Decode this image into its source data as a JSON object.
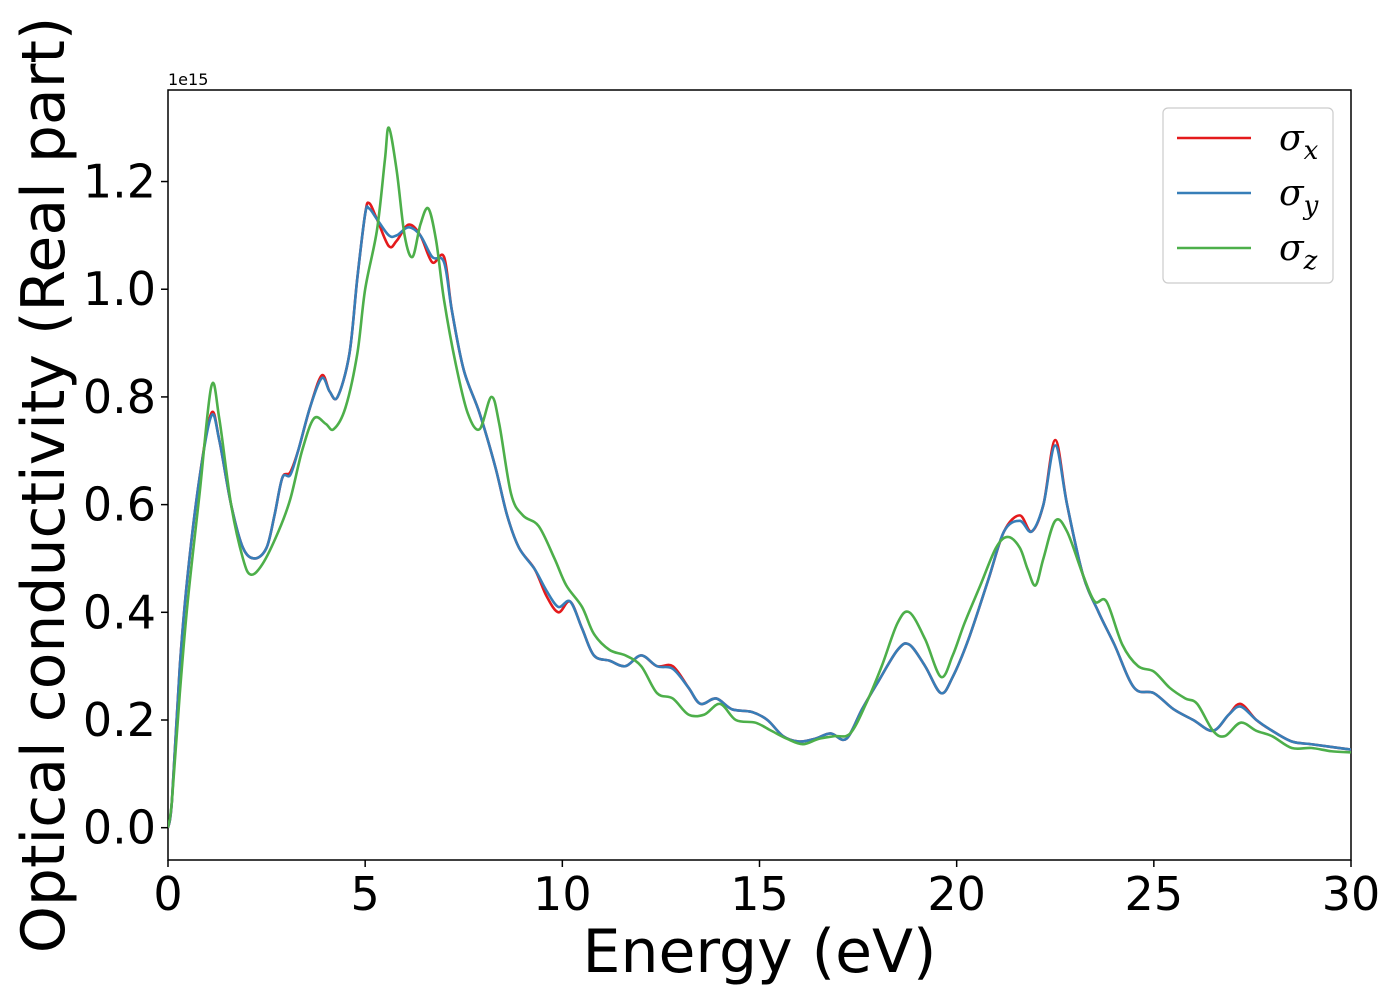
{
  "chart_data": {
    "type": "line",
    "title": "",
    "xlabel": "Energy (eV)",
    "ylabel": "Optical conductivity (Real part)",
    "y_offset_label": "1e15",
    "xlim": [
      0,
      30
    ],
    "ylim": [
      -0.06,
      1.37
    ],
    "x_ticks": [
      0,
      5,
      10,
      15,
      20,
      25,
      30
    ],
    "x_tick_labels": [
      "0",
      "5",
      "10",
      "15",
      "20",
      "25",
      "30"
    ],
    "y_ticks": [
      0.0,
      0.2,
      0.4,
      0.6,
      0.8,
      1.0,
      1.2
    ],
    "y_tick_labels": [
      "0.0",
      "0.2",
      "0.4",
      "0.6",
      "0.8",
      "1.0",
      "1.2"
    ],
    "grid": false,
    "legend_position": "top-right",
    "series": [
      {
        "name": "σx",
        "legend_symbol": "σ",
        "legend_sub": "x",
        "color": "#e41a1c",
        "points": [
          [
            0,
            0
          ],
          [
            0.1,
            0.05
          ],
          [
            0.3,
            0.3
          ],
          [
            0.5,
            0.47
          ],
          [
            0.8,
            0.65
          ],
          [
            1.1,
            0.77
          ],
          [
            1.3,
            0.72
          ],
          [
            1.6,
            0.6
          ],
          [
            1.9,
            0.52
          ],
          [
            2.2,
            0.5
          ],
          [
            2.5,
            0.52
          ],
          [
            2.7,
            0.58
          ],
          [
            2.9,
            0.65
          ],
          [
            3.1,
            0.66
          ],
          [
            3.3,
            0.7
          ],
          [
            3.6,
            0.78
          ],
          [
            3.9,
            0.84
          ],
          [
            4.1,
            0.81
          ],
          [
            4.3,
            0.8
          ],
          [
            4.6,
            0.88
          ],
          [
            4.8,
            1.02
          ],
          [
            5.0,
            1.14
          ],
          [
            5.1,
            1.16
          ],
          [
            5.3,
            1.13
          ],
          [
            5.6,
            1.08
          ],
          [
            5.8,
            1.09
          ],
          [
            6.1,
            1.12
          ],
          [
            6.4,
            1.1
          ],
          [
            6.7,
            1.05
          ],
          [
            7.0,
            1.06
          ],
          [
            7.2,
            0.96
          ],
          [
            7.5,
            0.85
          ],
          [
            7.9,
            0.77
          ],
          [
            8.3,
            0.67
          ],
          [
            8.6,
            0.58
          ],
          [
            8.9,
            0.52
          ],
          [
            9.3,
            0.48
          ],
          [
            9.6,
            0.43
          ],
          [
            9.9,
            0.4
          ],
          [
            10.2,
            0.42
          ],
          [
            10.5,
            0.37
          ],
          [
            10.8,
            0.32
          ],
          [
            11.2,
            0.31
          ],
          [
            11.6,
            0.3
          ],
          [
            12.0,
            0.32
          ],
          [
            12.4,
            0.3
          ],
          [
            12.8,
            0.3
          ],
          [
            13.2,
            0.26
          ],
          [
            13.5,
            0.23
          ],
          [
            13.9,
            0.24
          ],
          [
            14.3,
            0.22
          ],
          [
            14.8,
            0.215
          ],
          [
            15.2,
            0.2
          ],
          [
            15.6,
            0.17
          ],
          [
            16.0,
            0.16
          ],
          [
            16.4,
            0.165
          ],
          [
            16.8,
            0.175
          ],
          [
            17.2,
            0.165
          ],
          [
            17.6,
            0.22
          ],
          [
            18.0,
            0.27
          ],
          [
            18.5,
            0.33
          ],
          [
            18.8,
            0.34
          ],
          [
            19.2,
            0.3
          ],
          [
            19.6,
            0.25
          ],
          [
            19.9,
            0.28
          ],
          [
            20.3,
            0.35
          ],
          [
            20.8,
            0.46
          ],
          [
            21.2,
            0.55
          ],
          [
            21.6,
            0.58
          ],
          [
            21.9,
            0.55
          ],
          [
            22.2,
            0.6
          ],
          [
            22.5,
            0.72
          ],
          [
            22.8,
            0.6
          ],
          [
            23.2,
            0.47
          ],
          [
            23.6,
            0.4
          ],
          [
            24.0,
            0.34
          ],
          [
            24.5,
            0.26
          ],
          [
            25.0,
            0.25
          ],
          [
            25.5,
            0.22
          ],
          [
            26.0,
            0.2
          ],
          [
            26.5,
            0.18
          ],
          [
            26.9,
            0.21
          ],
          [
            27.2,
            0.23
          ],
          [
            27.6,
            0.2
          ],
          [
            28.0,
            0.18
          ],
          [
            28.5,
            0.16
          ],
          [
            29.0,
            0.155
          ],
          [
            29.5,
            0.15
          ],
          [
            30.0,
            0.145
          ]
        ]
      },
      {
        "name": "σy",
        "legend_symbol": "σ",
        "legend_sub": "y",
        "color": "#377eb8",
        "points": [
          [
            0,
            0
          ],
          [
            0.1,
            0.05
          ],
          [
            0.3,
            0.3
          ],
          [
            0.5,
            0.47
          ],
          [
            0.8,
            0.65
          ],
          [
            1.1,
            0.765
          ],
          [
            1.3,
            0.72
          ],
          [
            1.6,
            0.6
          ],
          [
            1.9,
            0.52
          ],
          [
            2.2,
            0.5
          ],
          [
            2.5,
            0.52
          ],
          [
            2.7,
            0.58
          ],
          [
            2.9,
            0.65
          ],
          [
            3.1,
            0.655
          ],
          [
            3.3,
            0.7
          ],
          [
            3.6,
            0.78
          ],
          [
            3.9,
            0.835
          ],
          [
            4.1,
            0.81
          ],
          [
            4.3,
            0.8
          ],
          [
            4.6,
            0.88
          ],
          [
            4.8,
            1.02
          ],
          [
            5.0,
            1.14
          ],
          [
            5.1,
            1.15
          ],
          [
            5.3,
            1.13
          ],
          [
            5.6,
            1.1
          ],
          [
            5.8,
            1.1
          ],
          [
            6.1,
            1.115
          ],
          [
            6.4,
            1.1
          ],
          [
            6.7,
            1.06
          ],
          [
            7.0,
            1.05
          ],
          [
            7.2,
            0.96
          ],
          [
            7.5,
            0.85
          ],
          [
            7.9,
            0.77
          ],
          [
            8.3,
            0.67
          ],
          [
            8.6,
            0.58
          ],
          [
            8.9,
            0.52
          ],
          [
            9.3,
            0.48
          ],
          [
            9.6,
            0.44
          ],
          [
            9.9,
            0.41
          ],
          [
            10.2,
            0.42
          ],
          [
            10.5,
            0.37
          ],
          [
            10.8,
            0.32
          ],
          [
            11.2,
            0.31
          ],
          [
            11.6,
            0.3
          ],
          [
            12.0,
            0.32
          ],
          [
            12.4,
            0.3
          ],
          [
            12.8,
            0.295
          ],
          [
            13.2,
            0.26
          ],
          [
            13.5,
            0.23
          ],
          [
            13.9,
            0.24
          ],
          [
            14.3,
            0.22
          ],
          [
            14.8,
            0.215
          ],
          [
            15.2,
            0.2
          ],
          [
            15.6,
            0.17
          ],
          [
            16.0,
            0.16
          ],
          [
            16.4,
            0.165
          ],
          [
            16.8,
            0.175
          ],
          [
            17.2,
            0.165
          ],
          [
            17.6,
            0.22
          ],
          [
            18.0,
            0.27
          ],
          [
            18.5,
            0.33
          ],
          [
            18.8,
            0.34
          ],
          [
            19.2,
            0.3
          ],
          [
            19.6,
            0.25
          ],
          [
            19.9,
            0.28
          ],
          [
            20.3,
            0.35
          ],
          [
            20.8,
            0.46
          ],
          [
            21.2,
            0.55
          ],
          [
            21.6,
            0.57
          ],
          [
            21.9,
            0.55
          ],
          [
            22.2,
            0.6
          ],
          [
            22.5,
            0.71
          ],
          [
            22.8,
            0.6
          ],
          [
            23.2,
            0.47
          ],
          [
            23.6,
            0.4
          ],
          [
            24.0,
            0.34
          ],
          [
            24.5,
            0.26
          ],
          [
            25.0,
            0.25
          ],
          [
            25.5,
            0.22
          ],
          [
            26.0,
            0.2
          ],
          [
            26.5,
            0.18
          ],
          [
            26.9,
            0.21
          ],
          [
            27.2,
            0.225
          ],
          [
            27.6,
            0.2
          ],
          [
            28.0,
            0.18
          ],
          [
            28.5,
            0.16
          ],
          [
            29.0,
            0.155
          ],
          [
            29.5,
            0.15
          ],
          [
            30.0,
            0.145
          ]
        ]
      },
      {
        "name": "σz",
        "legend_symbol": "σ",
        "legend_sub": "z",
        "color": "#4daf4a",
        "points": [
          [
            0,
            0
          ],
          [
            0.1,
            0.05
          ],
          [
            0.3,
            0.25
          ],
          [
            0.5,
            0.42
          ],
          [
            0.8,
            0.62
          ],
          [
            1.1,
            0.82
          ],
          [
            1.3,
            0.76
          ],
          [
            1.6,
            0.6
          ],
          [
            1.9,
            0.5
          ],
          [
            2.1,
            0.47
          ],
          [
            2.4,
            0.49
          ],
          [
            2.8,
            0.55
          ],
          [
            3.1,
            0.61
          ],
          [
            3.4,
            0.7
          ],
          [
            3.7,
            0.76
          ],
          [
            4.0,
            0.75
          ],
          [
            4.2,
            0.74
          ],
          [
            4.5,
            0.78
          ],
          [
            4.8,
            0.88
          ],
          [
            5.0,
            1.0
          ],
          [
            5.3,
            1.11
          ],
          [
            5.5,
            1.24
          ],
          [
            5.6,
            1.3
          ],
          [
            5.8,
            1.22
          ],
          [
            6.0,
            1.1
          ],
          [
            6.2,
            1.06
          ],
          [
            6.4,
            1.12
          ],
          [
            6.6,
            1.15
          ],
          [
            6.8,
            1.09
          ],
          [
            7.0,
            0.98
          ],
          [
            7.3,
            0.86
          ],
          [
            7.6,
            0.77
          ],
          [
            7.9,
            0.74
          ],
          [
            8.2,
            0.8
          ],
          [
            8.4,
            0.75
          ],
          [
            8.7,
            0.62
          ],
          [
            9.0,
            0.58
          ],
          [
            9.4,
            0.56
          ],
          [
            9.8,
            0.5
          ],
          [
            10.1,
            0.45
          ],
          [
            10.5,
            0.41
          ],
          [
            10.8,
            0.36
          ],
          [
            11.2,
            0.33
          ],
          [
            11.6,
            0.32
          ],
          [
            12.0,
            0.3
          ],
          [
            12.4,
            0.25
          ],
          [
            12.8,
            0.24
          ],
          [
            13.2,
            0.21
          ],
          [
            13.6,
            0.21
          ],
          [
            14.0,
            0.23
          ],
          [
            14.4,
            0.2
          ],
          [
            14.9,
            0.195
          ],
          [
            15.3,
            0.18
          ],
          [
            15.7,
            0.165
          ],
          [
            16.1,
            0.155
          ],
          [
            16.5,
            0.165
          ],
          [
            16.9,
            0.17
          ],
          [
            17.3,
            0.175
          ],
          [
            17.7,
            0.23
          ],
          [
            18.1,
            0.3
          ],
          [
            18.5,
            0.38
          ],
          [
            18.8,
            0.4
          ],
          [
            19.2,
            0.35
          ],
          [
            19.6,
            0.28
          ],
          [
            19.9,
            0.32
          ],
          [
            20.2,
            0.38
          ],
          [
            20.6,
            0.45
          ],
          [
            21.0,
            0.52
          ],
          [
            21.3,
            0.54
          ],
          [
            21.6,
            0.52
          ],
          [
            21.8,
            0.48
          ],
          [
            22.0,
            0.45
          ],
          [
            22.2,
            0.5
          ],
          [
            22.5,
            0.57
          ],
          [
            22.8,
            0.55
          ],
          [
            23.2,
            0.47
          ],
          [
            23.5,
            0.42
          ],
          [
            23.8,
            0.42
          ],
          [
            24.2,
            0.34
          ],
          [
            24.6,
            0.3
          ],
          [
            25.0,
            0.29
          ],
          [
            25.4,
            0.26
          ],
          [
            25.8,
            0.24
          ],
          [
            26.1,
            0.23
          ],
          [
            26.5,
            0.18
          ],
          [
            26.8,
            0.17
          ],
          [
            27.2,
            0.195
          ],
          [
            27.6,
            0.18
          ],
          [
            28.0,
            0.17
          ],
          [
            28.5,
            0.148
          ],
          [
            29.0,
            0.148
          ],
          [
            29.5,
            0.142
          ],
          [
            30.0,
            0.14
          ]
        ]
      }
    ]
  }
}
